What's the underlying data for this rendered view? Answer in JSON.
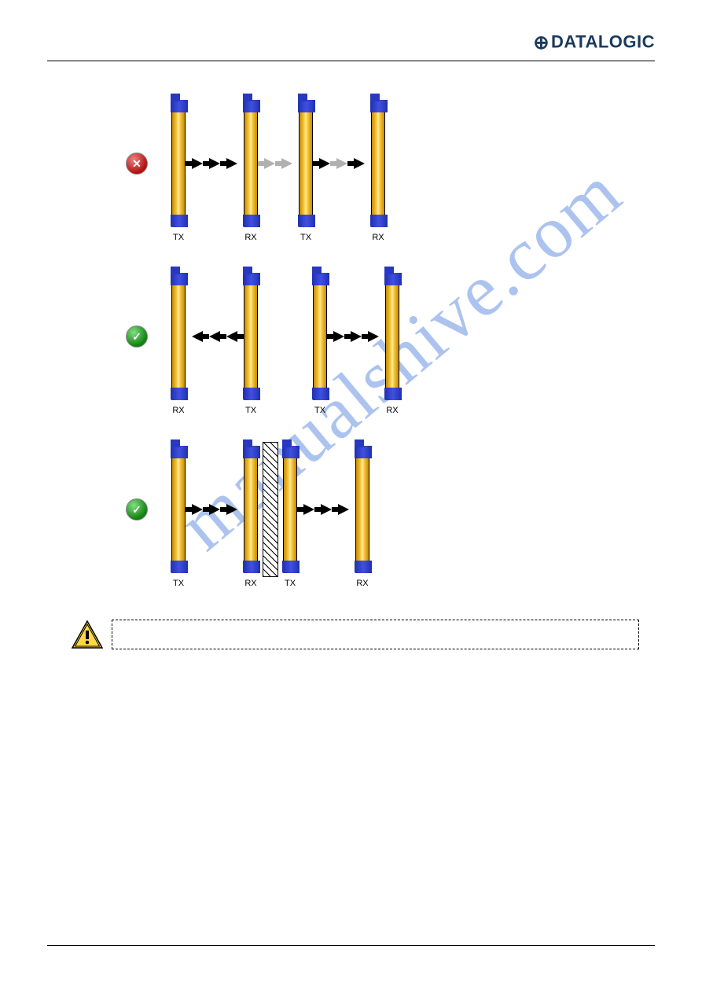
{
  "header": {
    "brand": "DATALOGIC"
  },
  "labels": {
    "tx": "TX",
    "rx": "RX",
    "opaque": "Opaque surface"
  },
  "watermark": "manualshive.com",
  "colors": {
    "bar_gold_mid": "#ffcf4a",
    "bar_gold_edge": "#c48a00",
    "bar_blue": "#2838c0",
    "arrow_black": "#000000",
    "arrow_grey": "#b0b0b0",
    "status_bad": "#b01010",
    "status_good": "#108010",
    "brand_text": "#1a3a5c",
    "watermark_color": "#4a7bdc"
  },
  "rows": [
    {
      "status": "bad",
      "pairs": [
        {
          "left": "TX",
          "right": "RX",
          "arrows": [
            {
              "d": "r",
              "c": "k"
            },
            {
              "d": "r",
              "c": "k"
            },
            {
              "d": "r",
              "c": "k"
            }
          ]
        },
        {
          "gap": "small",
          "arrows_between": [
            {
              "d": "r",
              "c": "g"
            },
            {
              "d": "r",
              "c": "g"
            }
          ]
        },
        {
          "left": "TX",
          "right": "RX",
          "arrows": [
            {
              "d": "r",
              "c": "k"
            },
            {
              "d": "r",
              "c": "g"
            },
            {
              "d": "r",
              "c": "k"
            }
          ]
        }
      ]
    },
    {
      "status": "good",
      "pairs": [
        {
          "left": "RX",
          "right": "TX",
          "arrows": [
            {
              "d": "l",
              "c": "k"
            },
            {
              "d": "l",
              "c": "k"
            },
            {
              "d": "l",
              "c": "k"
            }
          ]
        },
        {
          "gap": "med"
        },
        {
          "left": "TX",
          "right": "RX",
          "arrows": [
            {
              "d": "r",
              "c": "k"
            },
            {
              "d": "r",
              "c": "k"
            },
            {
              "d": "r",
              "c": "k"
            }
          ]
        }
      ]
    },
    {
      "status": "good",
      "pairs": [
        {
          "left": "TX",
          "right": "RX",
          "arrows": [
            {
              "d": "r",
              "c": "k"
            },
            {
              "d": "r",
              "c": "k"
            },
            {
              "d": "r",
              "c": "k"
            }
          ]
        },
        {
          "opaque": true
        },
        {
          "left": "TX",
          "right": "RX",
          "arrows": [
            {
              "d": "r",
              "c": "k"
            },
            {
              "d": "r",
              "c": "k"
            },
            {
              "d": "r",
              "c": "k"
            }
          ]
        }
      ]
    }
  ],
  "warning_text": "."
}
